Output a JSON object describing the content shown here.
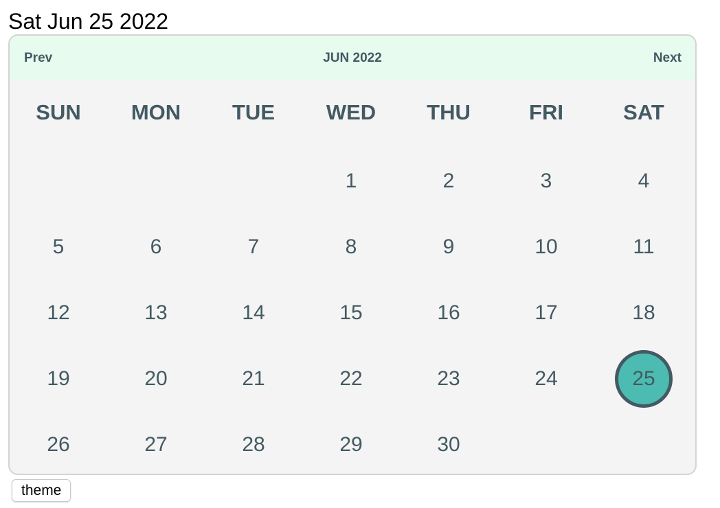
{
  "selected_date_label": "Sat Jun 25 2022",
  "calendar": {
    "prev_label": "Prev",
    "next_label": "Next",
    "month_label": "JUN 2022",
    "weekdays": [
      "SUN",
      "MON",
      "TUE",
      "WED",
      "THU",
      "FRI",
      "SAT"
    ],
    "first_weekday_index": 3,
    "days_in_month": 30,
    "selected_day": 25,
    "colors": {
      "header_bg": "#e7fbef",
      "body_bg": "#f4f4f4",
      "text": "#435a63",
      "selected_fill": "#4cbcb2",
      "selected_ring": "#435a63"
    }
  },
  "theme_button_label": "theme"
}
